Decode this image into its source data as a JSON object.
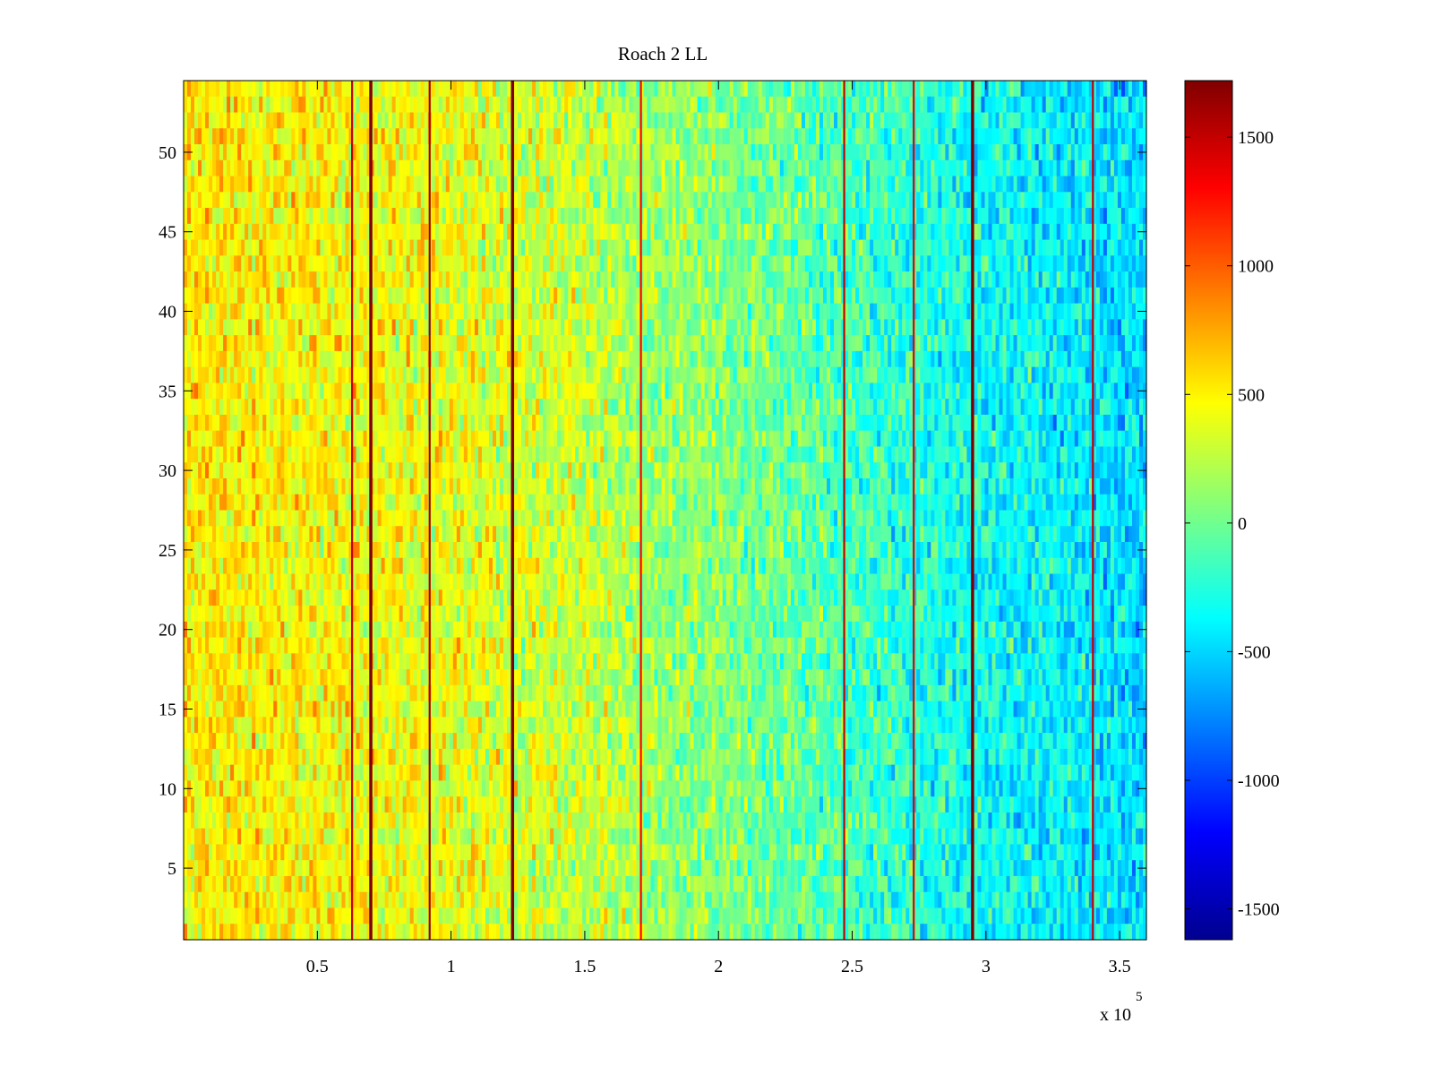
{
  "chart_data": {
    "type": "heatmap",
    "title": "Roach 2 LL",
    "xlabel": "",
    "ylabel": "",
    "x_exponent_label": "x 10",
    "x_exponent_power": "5",
    "xlim": [
      0,
      3.6
    ],
    "ylim": [
      0.5,
      54.5
    ],
    "rows": 54,
    "x_ticks": [
      {
        "value": 0.5,
        "label": "0.5"
      },
      {
        "value": 1,
        "label": "1"
      },
      {
        "value": 1.5,
        "label": "1.5"
      },
      {
        "value": 2,
        "label": "2"
      },
      {
        "value": 2.5,
        "label": "2.5"
      },
      {
        "value": 3,
        "label": "3"
      },
      {
        "value": 3.5,
        "label": "3.5"
      }
    ],
    "y_ticks": [
      {
        "value": 5,
        "label": "5"
      },
      {
        "value": 10,
        "label": "10"
      },
      {
        "value": 15,
        "label": "15"
      },
      {
        "value": 20,
        "label": "20"
      },
      {
        "value": 25,
        "label": "25"
      },
      {
        "value": 30,
        "label": "30"
      },
      {
        "value": 35,
        "label": "35"
      },
      {
        "value": 40,
        "label": "40"
      },
      {
        "value": 45,
        "label": "45"
      },
      {
        "value": 50,
        "label": "50"
      }
    ],
    "colorbar": {
      "colormap": "jet",
      "clim": [
        -1620,
        1720
      ],
      "ticks": [
        {
          "value": 1500,
          "label": "1500"
        },
        {
          "value": 1000,
          "label": "1000"
        },
        {
          "value": 500,
          "label": "500"
        },
        {
          "value": 0,
          "label": "0"
        },
        {
          "value": -500,
          "label": "-500"
        },
        {
          "value": -1000,
          "label": "-1000"
        },
        {
          "value": -1500,
          "label": "-1500"
        }
      ]
    },
    "trend": [
      {
        "x": 0.0,
        "value": 520
      },
      {
        "x": 0.5,
        "value": 480
      },
      {
        "x": 1.0,
        "value": 400
      },
      {
        "x": 1.5,
        "value": 270
      },
      {
        "x": 2.0,
        "value": 80
      },
      {
        "x": 2.5,
        "value": -150
      },
      {
        "x": 3.0,
        "value": -330
      },
      {
        "x": 3.6,
        "value": -480
      }
    ],
    "spikes": [
      {
        "x": 0.63,
        "value": 1500
      },
      {
        "x": 0.7,
        "value": 1720
      },
      {
        "x": 0.92,
        "value": 1600
      },
      {
        "x": 1.23,
        "value": 1720
      },
      {
        "x": 1.71,
        "value": 1300
      },
      {
        "x": 2.47,
        "value": 1500
      },
      {
        "x": 2.73,
        "value": 1400
      },
      {
        "x": 2.95,
        "value": 1720
      },
      {
        "x": 3.4,
        "value": 1500
      }
    ],
    "noise_amplitude": 260,
    "colors": {
      "axes": "#000000",
      "background": "#ffffff"
    }
  }
}
